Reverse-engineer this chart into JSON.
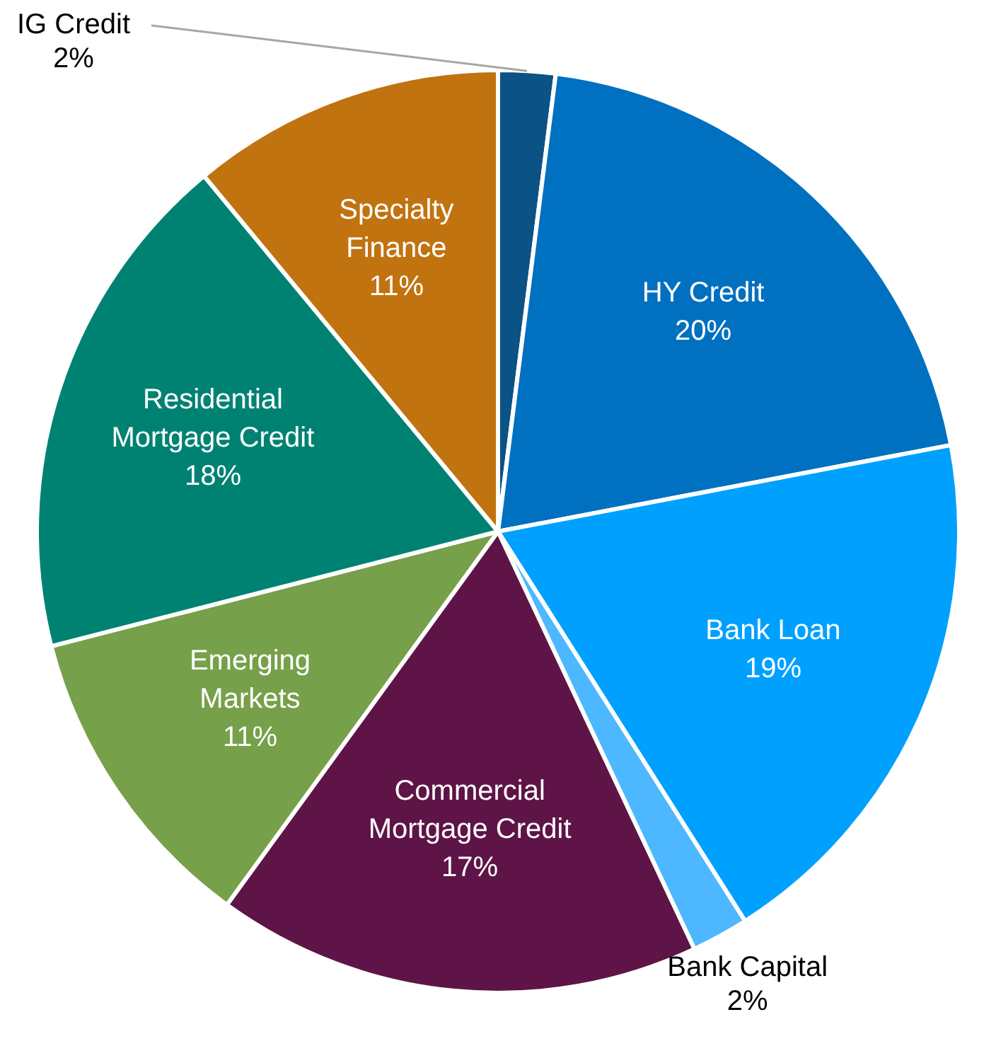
{
  "chart_data": {
    "type": "pie",
    "categories": [
      "IG Credit",
      "HY Credit",
      "Bank Loan",
      "Bank Capital",
      "Commercial Mortgage Credit",
      "Emerging Markets",
      "Residential Mortgage Credit",
      "Specialty Finance"
    ],
    "values": [
      2,
      20,
      19,
      2,
      17,
      11,
      18,
      11
    ],
    "colors": [
      "#0b5285",
      "#0070c0",
      "#00a0ff",
      "#4db8ff",
      "#5e1446",
      "#77a04a",
      "#008272",
      "#c0730f"
    ],
    "value_labels": [
      "2%",
      "20%",
      "19%",
      "2%",
      "17%",
      "11%",
      "18%",
      "11%"
    ],
    "legend": false
  }
}
